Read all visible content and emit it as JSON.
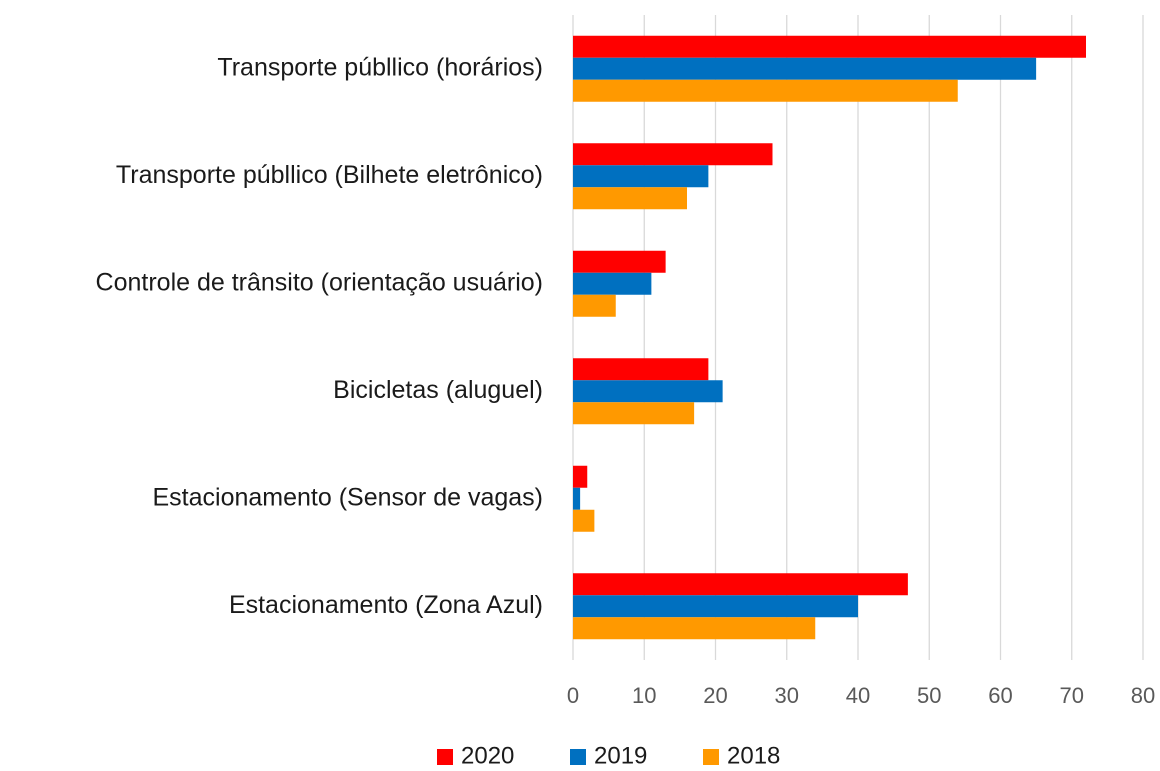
{
  "chart_data": {
    "type": "hbar",
    "categories": [
      "Transporte públlico (horários)",
      "Transporte públlico (Bilhete eletrônico)",
      "Controle de trânsito (orientação usuário)",
      "Bicicletas (aluguel)",
      "Estacionamento (Sensor de vagas)",
      "Estacionamento (Zona Azul)"
    ],
    "series": [
      {
        "name": "2020",
        "color": "#ff0000",
        "values": [
          72,
          28,
          13,
          19,
          2,
          47
        ]
      },
      {
        "name": "2019",
        "color": "#0070c0",
        "values": [
          65,
          19,
          11,
          21,
          1,
          40
        ]
      },
      {
        "name": "2018",
        "color": "#ff9900",
        "values": [
          54,
          16,
          6,
          17,
          3,
          34
        ]
      }
    ],
    "xlim": [
      0,
      80
    ],
    "xticks": [
      0,
      10,
      20,
      30,
      40,
      50,
      60,
      70,
      80
    ],
    "grid": true,
    "legend": "bottom"
  }
}
